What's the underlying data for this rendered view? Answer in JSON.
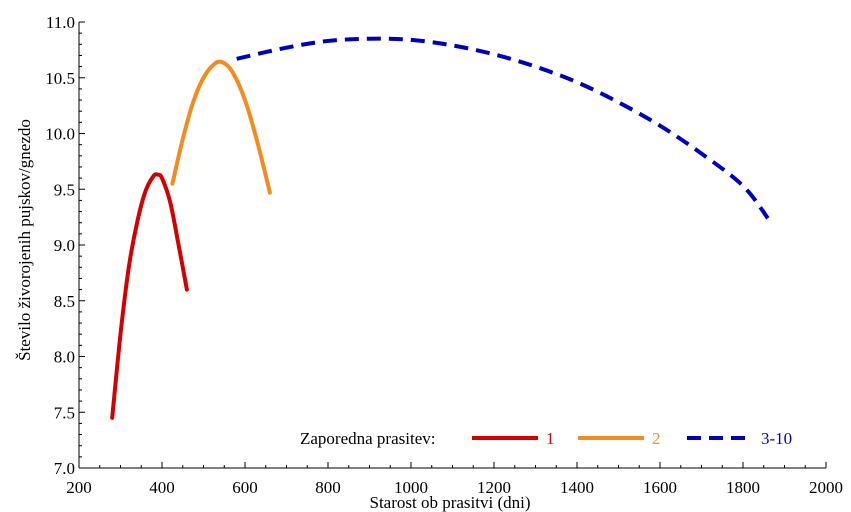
{
  "chart_data": {
    "type": "line",
    "xlabel": "Starost ob prasitvi (dni)",
    "ylabel": "Število živorojenih pujskov/gnezdo",
    "xlim": [
      200,
      2000
    ],
    "ylim": [
      7.0,
      11.0
    ],
    "xticks": [
      200,
      400,
      600,
      800,
      1000,
      1200,
      1400,
      1600,
      1800,
      2000
    ],
    "yticks": [
      7.0,
      7.5,
      8.0,
      8.5,
      9.0,
      9.5,
      10.0,
      10.5,
      11.0
    ],
    "xtick_labels": [
      "200",
      "400",
      "600",
      "800",
      "1000",
      "1200",
      "1400",
      "1600",
      "1800",
      "2000"
    ],
    "ytick_labels": [
      "7.0",
      "7.5",
      "8.0",
      "8.5",
      "9.0",
      "9.5",
      "10.0",
      "10.5",
      "11.0"
    ],
    "legend_title": "Zaporedna prasitev:",
    "legend_placement": "bottom-right",
    "grid": false,
    "series": [
      {
        "name": "1",
        "color": "#d40000",
        "dash": "solid",
        "x": [
          280,
          300,
          320,
          340,
          360,
          380,
          390,
          400,
          420,
          440,
          460
        ],
        "y": [
          7.45,
          8.2,
          8.8,
          9.2,
          9.48,
          9.62,
          9.63,
          9.6,
          9.38,
          9.0,
          8.6
        ]
      },
      {
        "name": "2",
        "color": "#f28c1c",
        "dash": "solid",
        "x": [
          425,
          450,
          475,
          500,
          525,
          545,
          570,
          600,
          630,
          660
        ],
        "y": [
          9.55,
          9.95,
          10.28,
          10.5,
          10.62,
          10.64,
          10.55,
          10.3,
          9.92,
          9.47
        ]
      },
      {
        "name": "3-10",
        "color": "#0000bb",
        "dash": "dashed",
        "x": [
          580,
          700,
          800,
          900,
          1000,
          1100,
          1200,
          1300,
          1400,
          1500,
          1600,
          1700,
          1800,
          1860
        ],
        "y": [
          10.67,
          10.77,
          10.83,
          10.85,
          10.84,
          10.79,
          10.71,
          10.6,
          10.46,
          10.28,
          10.07,
          9.82,
          9.53,
          9.24
        ]
      }
    ]
  }
}
